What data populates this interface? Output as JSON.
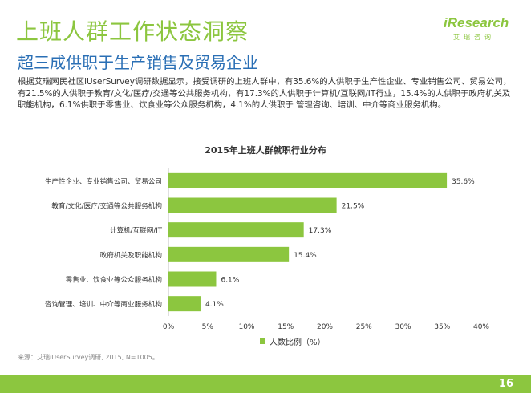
{
  "header": {
    "title": "上班人群工作状态洞察",
    "subtitle": "超三成供职于生产销售及贸易企业"
  },
  "logo": {
    "word_i": "i",
    "word_rest": "Research",
    "sub": "艾瑞咨询"
  },
  "body_text": "根据艾瑞网民社区iUserSurvey调研数据显示，接受调研的上班人群中，有35.6%的人供职于生产性企业、专业销售公司、贸易公司，有21.5%的人供职于教育/文化/医疗/交通等公共服务机构，有17.3%的人供职于计算机/互联网/IT行业，15.4%的人供职于政府机关及职能机构，6.1%供职于零售业、饮食业等公众服务机构，4.1%的人供职于 管理咨询、培训、中介等商业服务机构。",
  "chart_data": {
    "type": "bar",
    "orientation": "horizontal",
    "title": "2015年上班人群就职行业分布",
    "categories": [
      "生产性企业、专业销售公司、贸易公司",
      "教育/文化/医疗/交通等公共服务机构",
      "计算机/互联网/IT",
      "政府机关及职能机构",
      "零售业、饮食业等公众服务机构",
      "咨询管理、培训、中介等商业服务机构"
    ],
    "series": [
      {
        "name": "人数比例（%）",
        "values": [
          35.6,
          21.5,
          17.3,
          15.4,
          6.1,
          4.1
        ]
      }
    ],
    "value_labels": [
      "35.6%",
      "21.5%",
      "17.3%",
      "15.4%",
      "6.1%",
      "4.1%"
    ],
    "xlim": [
      0,
      40
    ],
    "xticks": [
      "0%",
      "5%",
      "10%",
      "15%",
      "20%",
      "25%",
      "30%",
      "35%",
      "40%"
    ],
    "grid": false,
    "legend_position": "bottom",
    "bar_color": "#8cc63f"
  },
  "source": "来源：艾瑞iUserSurvey调研, 2015, N=1005。",
  "footer": {
    "page_number": "16"
  }
}
